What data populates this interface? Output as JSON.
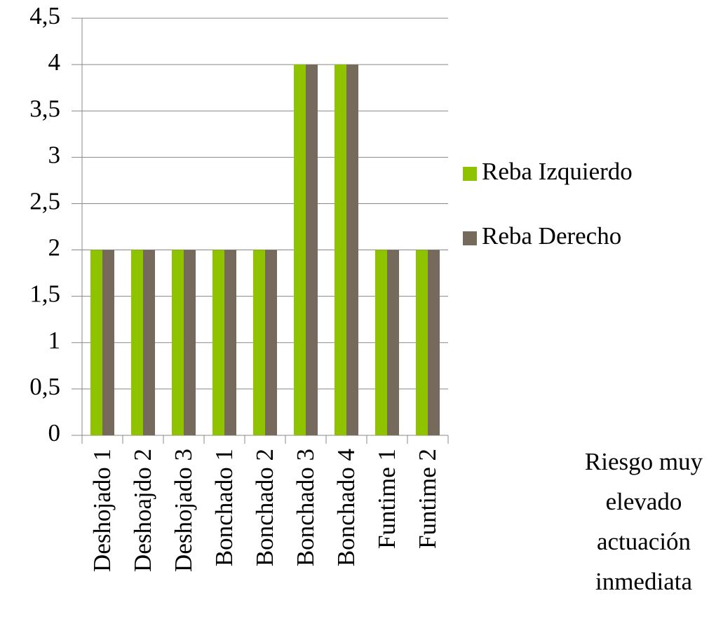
{
  "chart_data": {
    "type": "bar",
    "categories": [
      "Deshojado 1",
      "Deshoajdo 2",
      "Deshojado 3",
      "Bonchado 1",
      "Bonchado 2",
      "Bonchado 3",
      "Bonchado 4",
      "Funtime 1",
      "Funtime 2"
    ],
    "series": [
      {
        "name": "Reba Izquierdo",
        "color": "#8fc300",
        "values": [
          2,
          2,
          2,
          2,
          2,
          4,
          4,
          2,
          2
        ]
      },
      {
        "name": "Reba Derecho",
        "color": "#756a5b",
        "values": [
          2,
          2,
          2,
          2,
          2,
          4,
          4,
          2,
          2
        ]
      }
    ],
    "ylim": [
      0,
      4.5
    ],
    "yticks": [
      0,
      {
        "value": 0.5,
        "label": "0,5"
      },
      1,
      {
        "value": 1.5,
        "label": "1,5"
      },
      2,
      {
        "value": 2.5,
        "label": "2,5"
      },
      3,
      {
        "value": 3.5,
        "label": "3,5"
      },
      4,
      {
        "value": 4.5,
        "label": "4,5"
      }
    ],
    "grid": true,
    "legend": "right",
    "annotation": [
      "Riesgo muy",
      "elevado",
      "actuación",
      "inmediata"
    ]
  }
}
